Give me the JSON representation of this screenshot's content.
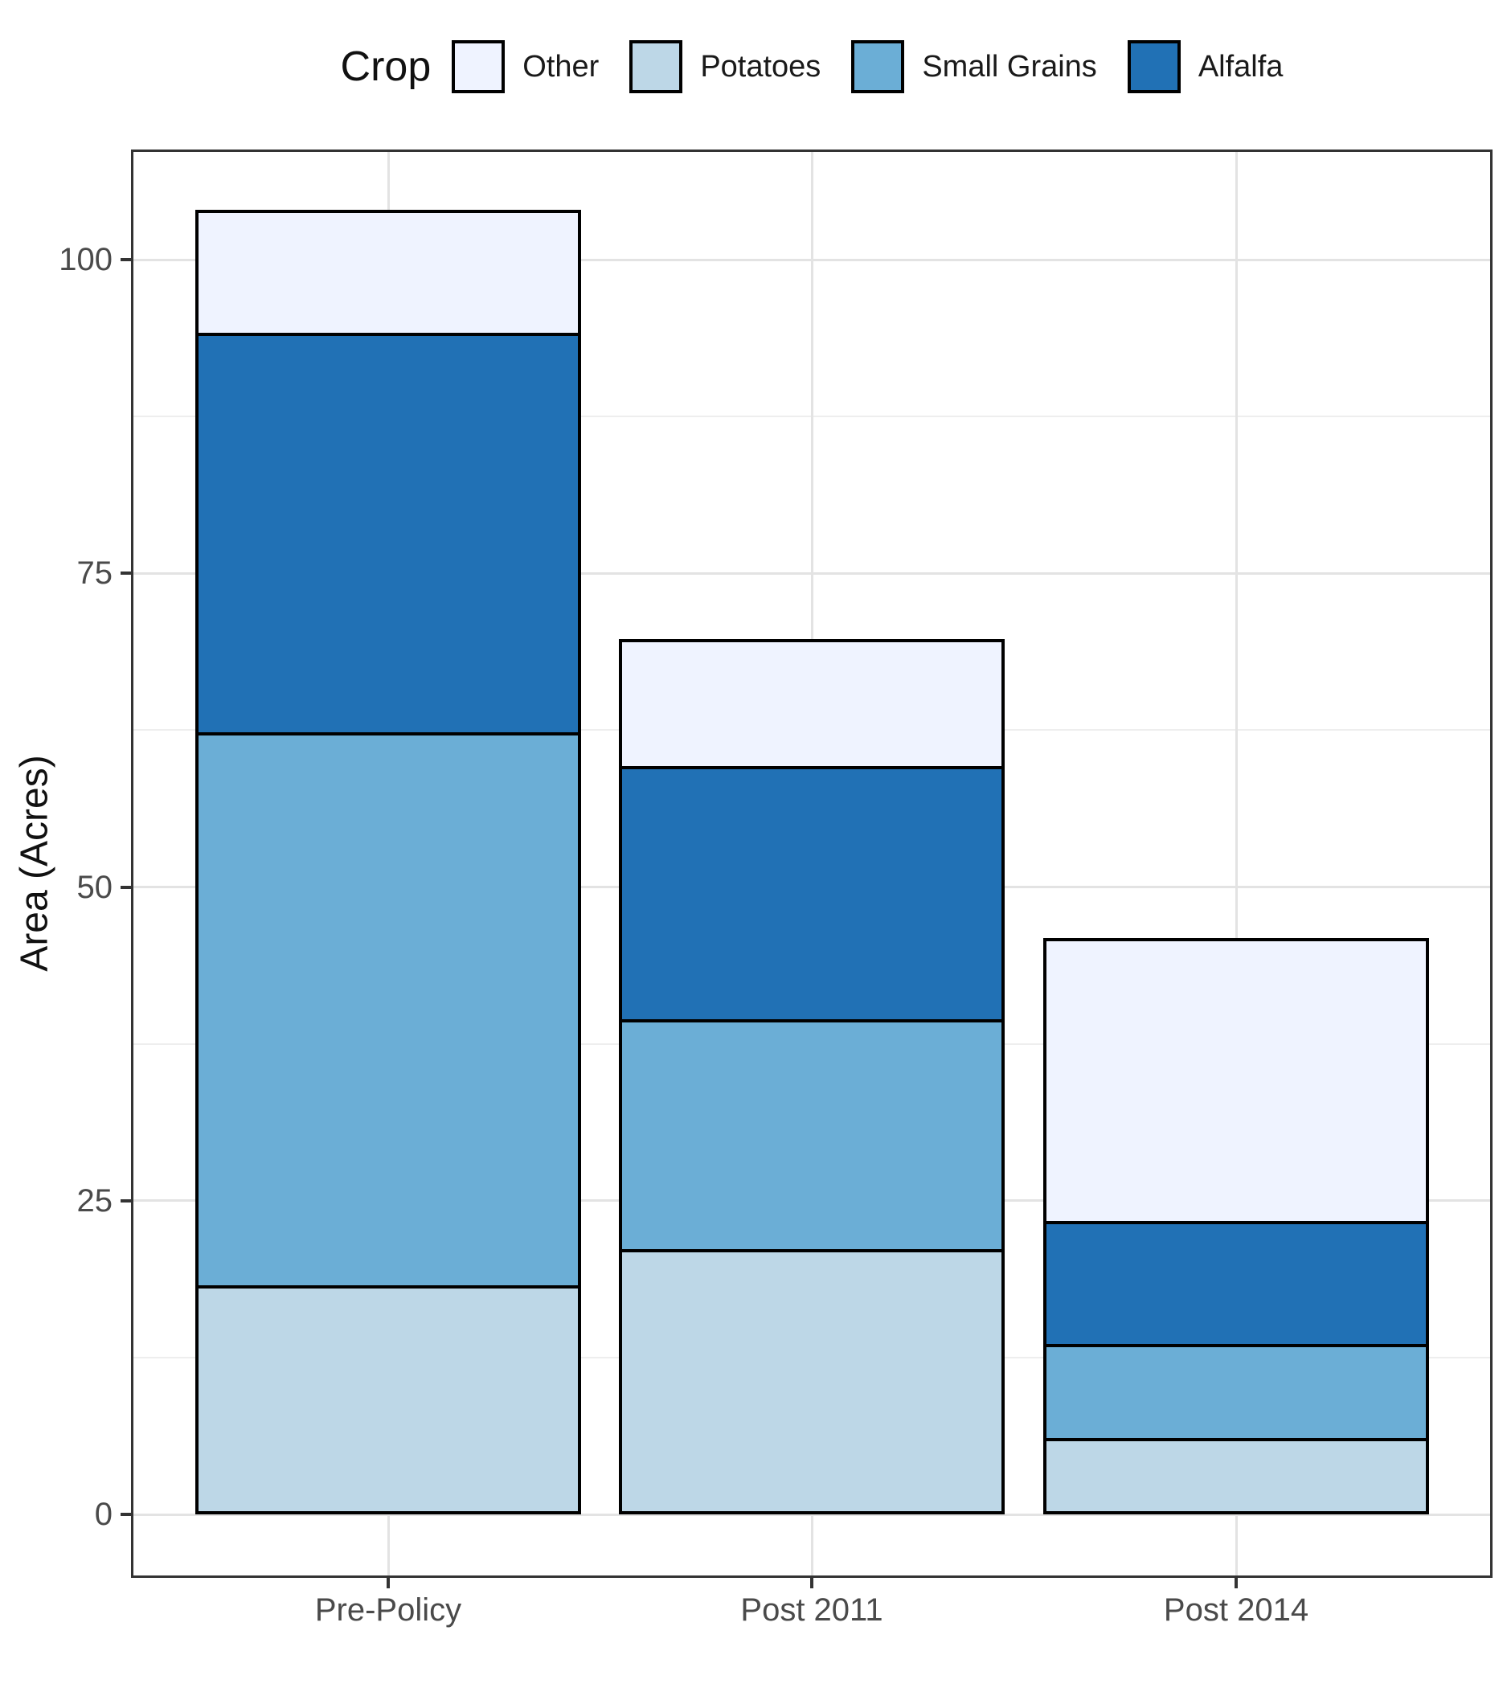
{
  "legend": {
    "title": "Crop",
    "items": [
      {
        "label": "Other",
        "color": "#EFF3FF"
      },
      {
        "label": "Potatoes",
        "color": "#BDD7E7"
      },
      {
        "label": "Small Grains",
        "color": "#6BAED6"
      },
      {
        "label": "Alfalfa",
        "color": "#2171B5"
      }
    ]
  },
  "y_axis": {
    "title": "Area (Acres)"
  },
  "x_axis": {
    "labels": [
      "Pre-Policy",
      "Post 2011",
      "Post 2014"
    ]
  },
  "colors": {
    "bar_border": "#000000",
    "panel_border": "#333333",
    "grid_major": "#e3e3e3",
    "grid_minor": "#eeeeee",
    "tick_mark": "#333333",
    "axis_text": "#4a4a4a",
    "title_text": "#111111",
    "background": "#ffffff"
  },
  "chart_data": {
    "type": "bar",
    "stacked": true,
    "title": "",
    "xlabel": "",
    "ylabel": "Area (Acres)",
    "categories": [
      "Pre-Policy",
      "Post 2011",
      "Post 2014"
    ],
    "series": [
      {
        "name": "Potatoes",
        "color": "#BDD7E7",
        "values": [
          18.0,
          20.9,
          5.8
        ]
      },
      {
        "name": "Small Grains",
        "color": "#6BAED6",
        "values": [
          44.1,
          18.3,
          7.5
        ]
      },
      {
        "name": "Alfalfa",
        "color": "#2171B5",
        "values": [
          31.8,
          20.2,
          9.8
        ]
      },
      {
        "name": "Other",
        "color": "#EFF3FF",
        "values": [
          9.8,
          10.1,
          22.6
        ]
      }
    ],
    "stack_totals": [
      103.7,
      69.5,
      45.7
    ],
    "yticks": [
      0,
      25,
      50,
      75,
      100
    ],
    "minor_yticks": [
      12.5,
      37.5,
      62.5,
      87.5
    ],
    "ylim": [
      -5.2,
      108.8
    ],
    "grid": true,
    "legend_position": "top",
    "legend_order": [
      "Other",
      "Potatoes",
      "Small Grains",
      "Alfalfa"
    ]
  }
}
